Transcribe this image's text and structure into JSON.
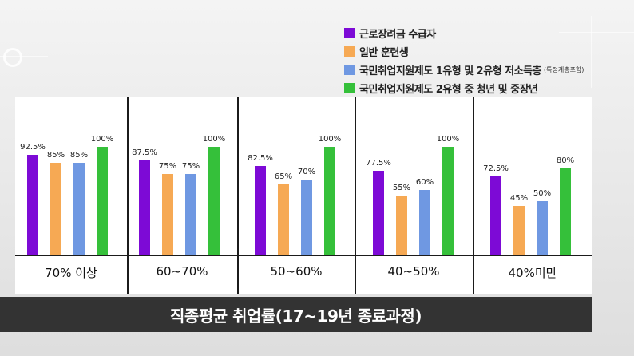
{
  "colors": {
    "purple": "#7d0ad6",
    "orange": "#f6a954",
    "blue": "#6f98e2",
    "green": "#35c03a",
    "caption_bg": "#333333"
  },
  "legend": [
    {
      "label": "근로장려금 수급자",
      "note": "",
      "color": "#7d0ad6"
    },
    {
      "label": "일반 훈련생",
      "note": "",
      "color": "#f6a954"
    },
    {
      "label": "국민취업지원제도 1유형 및 2유형 저소득층",
      "note": "(특정계층포함)",
      "color": "#6f98e2"
    },
    {
      "label": "국민취업지원제도 2유형 중 청년 및 중장년",
      "note": "",
      "color": "#35c03a"
    }
  ],
  "caption": "직종평균 취업률(17~19년 종료과정)",
  "chart_data": {
    "type": "bar",
    "title": "직종평균 취업률(17~19년 종료과정)",
    "categories": [
      "70% 이상",
      "60~70%",
      "50~60%",
      "40~50%",
      "40%미만"
    ],
    "ylim": [
      0,
      100
    ],
    "grid": false,
    "legend_position": "top-right",
    "series": [
      {
        "name": "근로장려금 수급자",
        "values": [
          92.5,
          87.5,
          82.5,
          77.5,
          72.5
        ],
        "labels": [
          "92.5%",
          "87.5%",
          "82.5%",
          "77.5%",
          "72.5%"
        ],
        "color": "#7d0ad6"
      },
      {
        "name": "일반 훈련생",
        "values": [
          85,
          75,
          65,
          55,
          45
        ],
        "labels": [
          "85%",
          "75%",
          "65%",
          "55%",
          "45%"
        ],
        "color": "#f6a954"
      },
      {
        "name": "국민취업지원제도 1유형 및 2유형 저소득층",
        "values": [
          85,
          75,
          70,
          60,
          50
        ],
        "labels": [
          "85%",
          "75%",
          "70%",
          "60%",
          "50%"
        ],
        "color": "#6f98e2"
      },
      {
        "name": "국민취업지원제도 2유형 중 청년 및 중장년",
        "values": [
          100,
          100,
          100,
          100,
          80
        ],
        "labels": [
          "100%",
          "100%",
          "100%",
          "100%",
          "80%"
        ],
        "color": "#35c03a"
      }
    ]
  }
}
